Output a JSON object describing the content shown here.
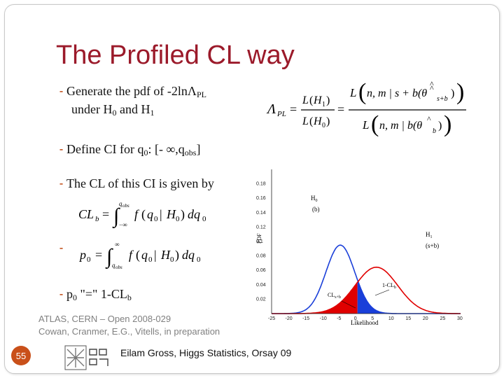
{
  "slide": {
    "title": "The Profiled CL way",
    "bullets": [
      {
        "text": "Generate the pdf of  -2lnΛ",
        "sub": "PL"
      },
      {
        "text_line2_a": "under H",
        "sub_a": "0",
        "text_line2_b": " and H",
        "sub_b": "1"
      },
      {
        "text": "Define CI for q",
        "sub": "0",
        "after": ": [- ∞,q",
        "sub2": "obs",
        "end": "]"
      },
      {
        "text": "The CL of this CI is given by"
      },
      {
        "text": "p",
        "sub": "0",
        "after": " \"=\" 1-CL",
        "sub2": "b"
      }
    ],
    "references": [
      "ATLAS, CERN – Open 2008-029",
      "Cowan, Cranmer, E.G., Vitells, in preparation"
    ],
    "footer": "Eilam Gross, Higgs Statistics, Orsay 09",
    "page_number": "55",
    "colors": {
      "title": "#9b1a2a",
      "bullet": "#c04a14",
      "h0": "#e00000",
      "h1": "#1a3fd9"
    }
  },
  "chart_data": {
    "type": "line",
    "xlabel": "Likelihood",
    "ylabel": "PDF",
    "xlim": [
      -25,
      30
    ],
    "ylim": [
      0,
      0.2
    ],
    "x_ticks": [
      -25,
      -20,
      -15,
      -10,
      -5,
      0,
      5,
      10,
      15,
      20,
      25,
      30
    ],
    "y_ticks": [
      0.02,
      0.04,
      0.06,
      0.08,
      0.1,
      0.12,
      0.14,
      0.16,
      0.18
    ],
    "series": [
      {
        "name": "H0 (b)",
        "label_line1": "H",
        "label_sub": "0",
        "label_line2": "(b)",
        "color": "#1a3fd9",
        "mean": -5,
        "sd": 4.2
      },
      {
        "name": "H1 (s+b)",
        "label_line1": "H",
        "label_sub": "1",
        "label_line2": "(s+b)",
        "color": "#e00000",
        "mean": 5.5,
        "sd": 6.2
      }
    ],
    "q_obs": 0,
    "annotations": {
      "clb": "1-CL",
      "clb_sub": "b",
      "clsb": "CL",
      "clsb_sub": "s+b"
    }
  }
}
